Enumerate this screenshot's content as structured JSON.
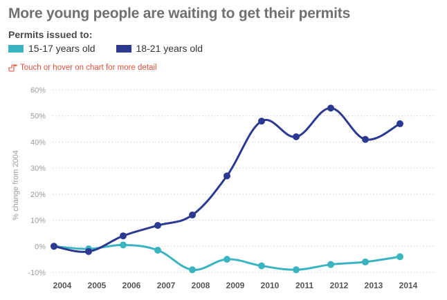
{
  "header": {
    "title": "More young people are waiting to get their permits",
    "legend_title": "Permits issued to:",
    "hint": "Touch or hover on chart for more detail"
  },
  "colors": {
    "series_15_17": "#3bb4c1",
    "series_18_21": "#2b3990",
    "hint": "#e0503a",
    "grid": "#cccccc"
  },
  "chart_data": {
    "type": "line",
    "title": "More young people are waiting to get their permits",
    "xlabel": "",
    "ylabel": "% change from 2004",
    "x": [
      "2004",
      "2005",
      "2006",
      "2007",
      "2008",
      "2009",
      "2010",
      "2011",
      "2012",
      "2013",
      "2014"
    ],
    "ylim": [
      -10,
      60
    ],
    "yticks": [
      -10,
      0,
      10,
      20,
      30,
      40,
      50,
      60
    ],
    "ytick_labels": [
      "-10%",
      "0%",
      "10%",
      "20%",
      "30%",
      "40%",
      "50%",
      "60%"
    ],
    "grid": true,
    "legend": "top-left",
    "series": [
      {
        "name": "15-17 years old",
        "color": "#3bb4c1",
        "values": [
          0,
          -1,
          0.5,
          -1.5,
          -9,
          -5,
          -7.5,
          -9,
          -7,
          -6,
          -4
        ]
      },
      {
        "name": "18-21 years old",
        "color": "#2b3990",
        "values": [
          0,
          -2,
          4,
          8,
          12,
          27,
          48,
          42,
          53,
          41,
          47
        ]
      }
    ]
  }
}
